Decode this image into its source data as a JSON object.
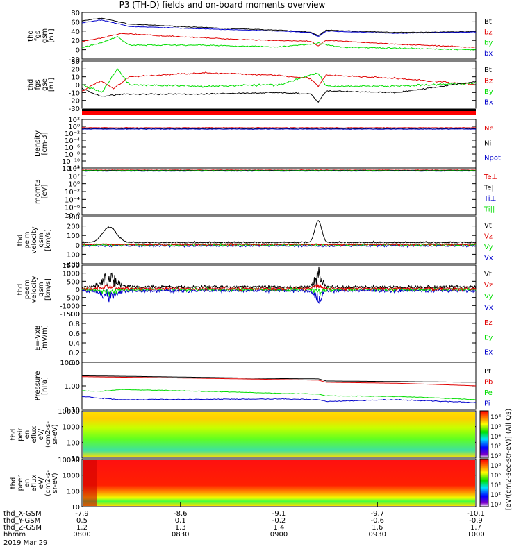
{
  "title": "P3 (TH-D) fields and on-board moments overview",
  "colors": {
    "black": "#000000",
    "red": "#e00000",
    "green": "#00dd00",
    "blue": "#0000cc"
  },
  "panels": [
    {
      "id": "fgs-gsm",
      "ylabel": [
        "thd",
        "fgs",
        "gsm",
        "[nT]"
      ],
      "ticks": [
        "80",
        "60",
        "40",
        "20",
        "0",
        "-20"
      ],
      "legend": [
        {
          "t": "Bt",
          "c": "black"
        },
        {
          "t": "bz",
          "c": "red"
        },
        {
          "t": "by",
          "c": "green"
        },
        {
          "t": "bx",
          "c": "blue"
        }
      ]
    },
    {
      "id": "fgs-gse",
      "ylabel": [
        "thd",
        "fgs",
        "gse",
        "[nT]"
      ],
      "ticks": [
        "30",
        "20",
        "10",
        "0",
        "-10",
        "-20",
        "-30"
      ],
      "legend": [
        {
          "t": "Bt",
          "c": "black"
        },
        {
          "t": "Bz",
          "c": "red"
        },
        {
          "t": "By",
          "c": "green"
        },
        {
          "t": "Bx",
          "c": "blue"
        }
      ]
    },
    {
      "id": "density",
      "ylabel": [
        "Density",
        "[cm-3]"
      ],
      "ticks": [
        "10²",
        "10⁰",
        "10⁻²",
        "10⁻⁴",
        "10⁻⁶",
        "10⁻⁸",
        "10⁻¹⁰",
        "10⁻¹²"
      ],
      "legend": [
        {
          "t": "Ne",
          "c": "red"
        },
        {
          "t": "Ni",
          "c": "black"
        },
        {
          "t": "Npot",
          "c": "blue"
        }
      ]
    },
    {
      "id": "temperature",
      "ylabel": [
        "momt3",
        "[eV]"
      ],
      "ticks": [
        "10⁴",
        "10²",
        "10⁰",
        "10⁻²",
        "10⁻⁴",
        "10⁻⁶",
        "10⁻⁸"
      ],
      "legend": [
        {
          "t": "Te⊥",
          "c": "red"
        },
        {
          "t": "Te||",
          "c": "black"
        },
        {
          "t": "Ti⊥",
          "c": "blue"
        },
        {
          "t": "Ti||",
          "c": "green"
        }
      ]
    },
    {
      "id": "vi",
      "ylabel": [
        "thd",
        "peim",
        "velocity",
        "gsm",
        "[km/s]"
      ],
      "ticks": [
        "300",
        "200",
        "100",
        "0",
        "-100",
        "-200"
      ],
      "legend": [
        {
          "t": "Vt",
          "c": "black"
        },
        {
          "t": "Vz",
          "c": "red"
        },
        {
          "t": "Vy",
          "c": "green"
        },
        {
          "t": "Vx",
          "c": "blue"
        }
      ]
    },
    {
      "id": "ve",
      "ylabel": [
        "thd",
        "peem",
        "velocity",
        "gsm",
        "[km/s]"
      ],
      "ticks": [
        "1500",
        "1000",
        "500",
        "0",
        "-500",
        "-1000",
        "-1500"
      ],
      "legend": [
        {
          "t": "Vt",
          "c": "black"
        },
        {
          "t": "Vz",
          "c": "red"
        },
        {
          "t": "Vy",
          "c": "green"
        },
        {
          "t": "Vx",
          "c": "blue"
        }
      ]
    },
    {
      "id": "efield",
      "ylabel": [
        "E=-VxB",
        "[mV/m]"
      ],
      "ticks": [
        "1.0",
        "0.8",
        "0.6",
        "0.4",
        "0.2",
        "0.0"
      ],
      "legend": [
        {
          "t": "Ez",
          "c": "red"
        },
        {
          "t": "Ey",
          "c": "green"
        },
        {
          "t": "Ex",
          "c": "blue"
        }
      ]
    },
    {
      "id": "pressure",
      "ylabel": [
        "Pressure",
        "[nPa]"
      ],
      "ticks": [
        "10.00",
        "1.00",
        "0.10"
      ],
      "legend": [
        {
          "t": "Pt",
          "c": "black"
        },
        {
          "t": "Pb",
          "c": "red"
        },
        {
          "t": "Pe",
          "c": "green"
        },
        {
          "t": "Pi",
          "c": "blue"
        }
      ]
    },
    {
      "id": "peir",
      "ylabel": [
        "thd",
        "peir",
        "en",
        "eflux",
        "eV/",
        "(cm2-s-",
        "sr-eV)"
      ],
      "ticks": [
        "10000",
        "1000",
        "100",
        "10"
      ]
    },
    {
      "id": "peer",
      "ylabel": [
        "thd",
        "peer",
        "en",
        "eflux",
        "eV/",
        "(cm2-s-",
        "sr-eV)"
      ],
      "ticks": [
        "10000",
        "1000",
        "100",
        "10"
      ]
    }
  ],
  "colorbar": {
    "label": "[eV/(cm2-sec-str-eV)] (All Qs)",
    "ticks": [
      "10⁸",
      "10⁶",
      "10⁴",
      "10²",
      "10⁰"
    ]
  },
  "xaxis": {
    "rows": [
      {
        "label": "thd_X-GSM",
        "values": [
          "-7.9",
          "-8.6",
          "-9.1",
          "-9.7",
          "-10.1"
        ]
      },
      {
        "label": "thd_Y-GSM",
        "values": [
          "0.5",
          "0.1",
          "-0.2",
          "-0.6",
          "-0.9"
        ]
      },
      {
        "label": "thd_Z-GSM",
        "values": [
          "1.2",
          "1.3",
          "1.4",
          "1.6",
          "1.7"
        ]
      },
      {
        "label": "hhmm",
        "values": [
          "0800",
          "0830",
          "0900",
          "0930",
          "1000"
        ]
      }
    ],
    "date": "2019 Mar 29"
  },
  "chart_data": {
    "type": "line",
    "title": "P3 (TH-D) fields and on-board moments overview",
    "time_range": [
      "0800",
      "1000"
    ],
    "series": [
      {
        "panel": "fgs-gsm",
        "name": "Bt",
        "x": [
          "0800",
          "0815",
          "0830",
          "0845",
          "0900",
          "0930",
          "1000"
        ],
        "values": [
          65,
          50,
          45,
          42,
          38,
          35,
          38
        ]
      },
      {
        "panel": "fgs-gsm",
        "name": "bz",
        "x": [
          "0800",
          "0815",
          "0830",
          "0845",
          "0900",
          "0930",
          "1000"
        ],
        "values": [
          20,
          30,
          25,
          20,
          17,
          10,
          5
        ]
      },
      {
        "panel": "fgs-gsm",
        "name": "by",
        "x": [
          "0800",
          "0815",
          "0830",
          "0845",
          "0900",
          "0930",
          "1000"
        ],
        "values": [
          5,
          18,
          10,
          5,
          8,
          3,
          0
        ]
      },
      {
        "panel": "fgs-gsm",
        "name": "bx",
        "x": [
          "0800",
          "0815",
          "0830",
          "0845",
          "0900",
          "0930",
          "1000"
        ],
        "values": [
          60,
          45,
          42,
          40,
          36,
          34,
          37
        ]
      },
      {
        "panel": "pressure",
        "name": "Pt",
        "x": [
          "0800",
          "0830",
          "0900",
          "0930",
          "1000"
        ],
        "values": [
          2.0,
          1.5,
          1.3,
          1.0,
          0.8
        ]
      },
      {
        "panel": "pressure",
        "name": "Pb",
        "x": [
          "0800",
          "0830",
          "0900",
          "0930",
          "1000"
        ],
        "values": [
          1.8,
          1.4,
          1.2,
          0.9,
          0.6
        ]
      },
      {
        "panel": "pressure",
        "name": "Pe",
        "x": [
          "0800",
          "0830",
          "0900",
          "0930",
          "1000"
        ],
        "values": [
          0.3,
          0.25,
          0.2,
          0.15,
          0.1
        ]
      },
      {
        "panel": "pressure",
        "name": "Pi",
        "x": [
          "0800",
          "0830",
          "0900",
          "0930",
          "1000"
        ],
        "values": [
          0.15,
          0.12,
          0.11,
          0.1,
          0.08
        ]
      }
    ]
  }
}
